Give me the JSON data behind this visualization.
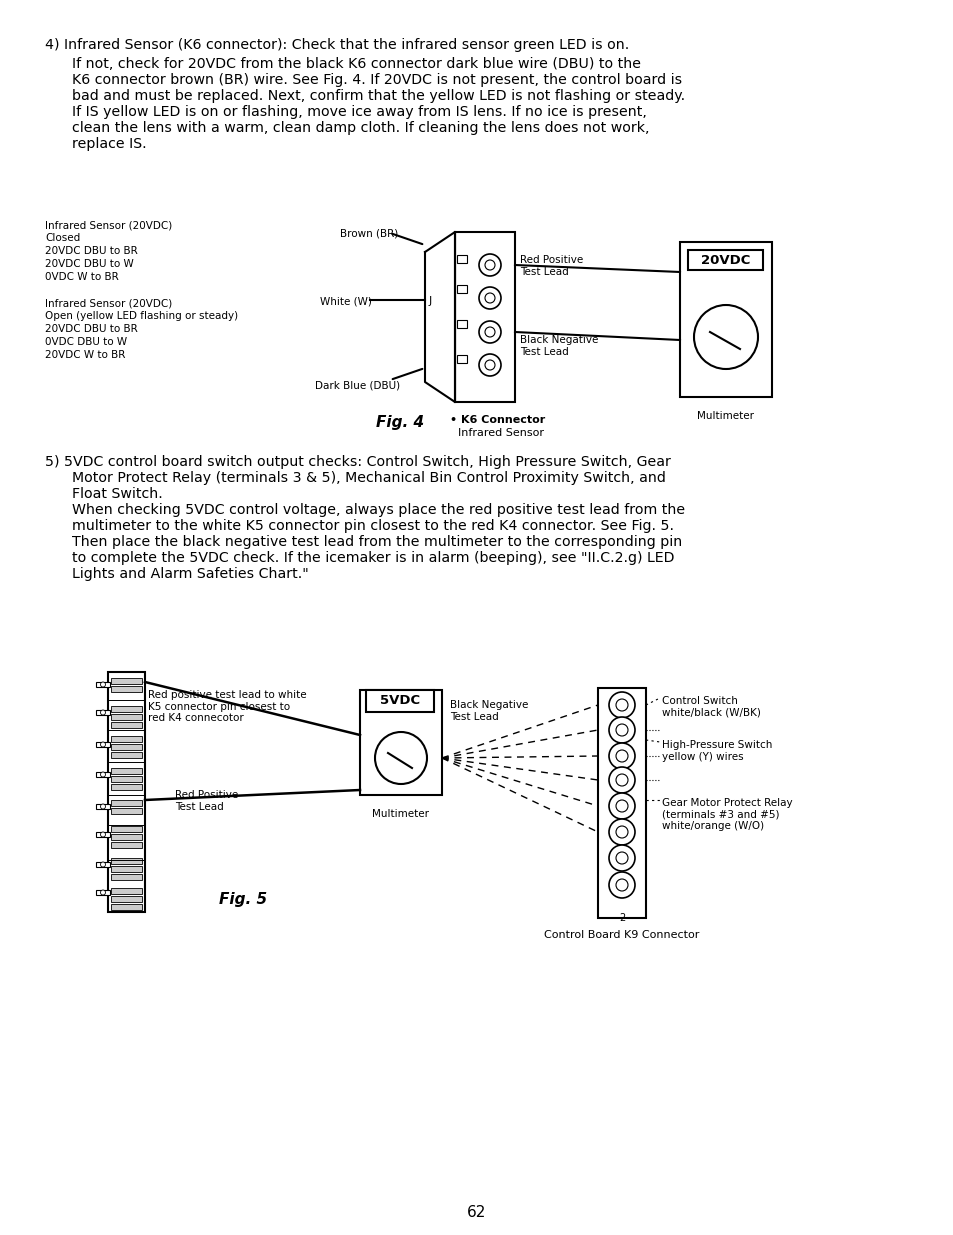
{
  "bg_color": "#ffffff",
  "page_number": "62",
  "para4_heading": "4) Infrared Sensor (K6 connector): Check that the infrared sensor green LED is on.",
  "para4_lines": [
    "If not, check for 20VDC from the black K6 connector dark blue wire (DBU) to the",
    "K6 connector brown (BR) wire. See Fig. 4. If 20VDC is not present, the control board is",
    "bad and must be replaced. Next, confirm that the yellow LED is not flashing or steady.",
    "If IS yellow LED is on or flashing, move ice away from IS lens. If no ice is present,",
    "clean the lens with a warm, clean damp cloth. If cleaning the lens does not work,",
    "replace IS."
  ],
  "fig4_left_block": [
    "Infrared Sensor (20VDC)",
    "Closed",
    "20VDC DBU to BR",
    "20VDC DBU to W",
    "0VDC W to BR",
    "",
    "Infrared Sensor (20VDC)",
    "Open (yellow LED flashing or steady)",
    "20VDC DBU to BR",
    "0VDC DBU to W",
    "20VDC W to BR"
  ],
  "fig4_brown_label": "Brown (BR)",
  "fig4_white_label": "White (W)",
  "fig4_dbu_label": "Dark Blue (DBU)",
  "fig4_red_lead_label": "Red Positive\nTest Lead",
  "fig4_black_lead_label": "Black Negative\nTest Lead",
  "fig4_20vdc_label": "20VDC",
  "fig4_multimeter_label": "Multimeter",
  "fig4_k6_label": "• K6 Connector",
  "fig4_k6_sub_label": "Infrared Sensor",
  "fig4_caption": "Fig. 4",
  "para5_heading": "5) 5VDC control board switch output checks: Control Switch, High Pressure Switch, Gear",
  "para5_lines": [
    "Motor Protect Relay (terminals 3 & 5), Mechanical Bin Control Proximity Switch, and",
    "Float Switch.",
    "When checking 5VDC control voltage, always place the red positive test lead from the",
    "multimeter to the white K5 connector pin closest to the red K4 connector. See Fig. 5.",
    "Then place the black negative test lead from the multimeter to the corresponding pin",
    "to complete the 5VDC check. If the icemaker is in alarm (beeping), see \"II.C.2.g) LED",
    "Lights and Alarm Safeties Chart.\""
  ],
  "fig5_red_top_label": "Red positive test lead to white\nK5 connector pin closest to\nred K4 connecotor",
  "fig5_red_pos_label": "Red Positive\nTest Lead",
  "fig5_5vdc_label": "5VDC",
  "fig5_black_neg_label": "Black Negative\nTest Lead",
  "fig5_multimeter_label": "Multimeter",
  "fig5_control_label": "Control Switch\nwhite/black (W/BK)",
  "fig5_hp_label": "High-Pressure Switch\nyellow (Y) wires",
  "fig5_gear_label": "Gear Motor Protect Relay\n(terminals #3 and #5)\nwhite/orange (W/O)",
  "fig5_k9_label": "Control Board K9 Connector",
  "fig5_caption": "Fig. 5"
}
